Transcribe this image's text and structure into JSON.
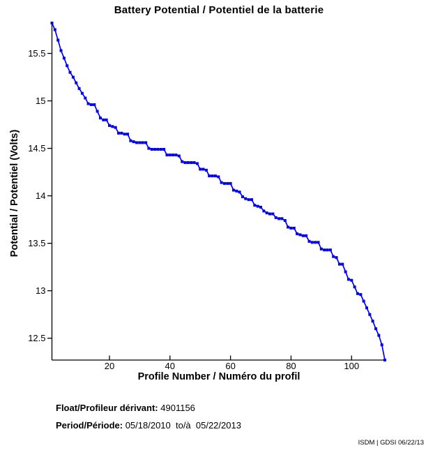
{
  "title": "Battery Potential / Potentiel de la batterie",
  "footer": {
    "float_label": "Float/Profileur dérivant:",
    "float_value": " 4901156",
    "period_label": "Period/Période:",
    "period_value": " 05/18/2010  to/à  05/22/2013",
    "credit": "ISDM | GDSI 06/22/13"
  },
  "chart_data": {
    "type": "line",
    "title": "Battery Potential / Potentiel de la batterie",
    "xlabel": "Profile Number / Numéro du profil",
    "ylabel": "Potential / Potentiel (Volts)",
    "line_color": "#0000ee",
    "axis_color": "#000000",
    "marker": "square",
    "grid": false,
    "legend": "none",
    "xlim": [
      1,
      111
    ],
    "ylim": [
      12.27,
      15.82
    ],
    "x_ticks": [
      20,
      40,
      60,
      80,
      100
    ],
    "x_tick_labels": [
      "20",
      "40",
      "60",
      "80",
      "100"
    ],
    "y_ticks": [
      15.5,
      15.0,
      14.5,
      14.0,
      13.5,
      13.0,
      12.5
    ],
    "y_tick_labels": [
      "15.5",
      "15",
      "14.5",
      "14",
      "13.5",
      "13",
      "12.5"
    ],
    "x_start": 1,
    "x_step": 1,
    "values": [
      15.82,
      15.75,
      15.64,
      15.53,
      15.45,
      15.37,
      15.3,
      15.25,
      15.19,
      15.13,
      15.08,
      15.03,
      14.97,
      14.96,
      14.96,
      14.89,
      14.82,
      14.8,
      14.8,
      14.74,
      14.73,
      14.72,
      14.66,
      14.66,
      14.65,
      14.65,
      14.58,
      14.57,
      14.56,
      14.56,
      14.56,
      14.56,
      14.5,
      14.49,
      14.49,
      14.49,
      14.49,
      14.49,
      14.43,
      14.43,
      14.43,
      14.43,
      14.42,
      14.36,
      14.35,
      14.35,
      14.35,
      14.35,
      14.34,
      14.28,
      14.28,
      14.27,
      14.21,
      14.21,
      14.21,
      14.2,
      14.14,
      14.13,
      14.13,
      14.13,
      14.06,
      14.05,
      14.04,
      13.99,
      13.97,
      13.96,
      13.96,
      13.9,
      13.89,
      13.88,
      13.84,
      13.82,
      13.81,
      13.81,
      13.77,
      13.76,
      13.76,
      13.74,
      13.67,
      13.66,
      13.66,
      13.6,
      13.59,
      13.58,
      13.58,
      13.52,
      13.51,
      13.51,
      13.51,
      13.44,
      13.43,
      13.43,
      13.43,
      13.36,
      13.35,
      13.28,
      13.28,
      13.2,
      13.12,
      13.11,
      13.04,
      12.97,
      12.96,
      12.89,
      12.82,
      12.75,
      12.68,
      12.6,
      12.53,
      12.43,
      12.27
    ]
  }
}
